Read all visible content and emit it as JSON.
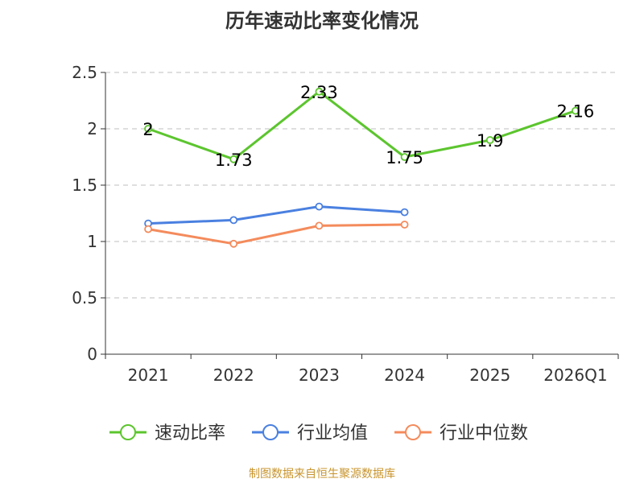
{
  "chart_data": {
    "type": "line",
    "title": "历年速动比率变化情况",
    "categories": [
      "2021",
      "2022",
      "2023",
      "2024",
      "2025",
      "2026Q1"
    ],
    "ylim": [
      0,
      2.5
    ],
    "yticks": [
      0,
      0.5,
      1,
      1.5,
      2,
      2.5
    ],
    "ytick_labels": [
      "0",
      "0.5",
      "1",
      "1.5",
      "2",
      "2.5"
    ],
    "grid": true,
    "legend_position": "bottom",
    "series": [
      {
        "name": "速动比率",
        "color": "#5cc52e",
        "values": [
          2,
          1.73,
          2.33,
          1.75,
          1.9,
          2.16
        ],
        "labels": [
          "2",
          "1.73",
          "2.33",
          "1.75",
          "1.9",
          "2.16"
        ],
        "show_labels": true
      },
      {
        "name": "行业均值",
        "color": "#4a80e0",
        "values": [
          1.16,
          1.19,
          1.31,
          1.26,
          null,
          null
        ],
        "show_labels": false
      },
      {
        "name": "行业中位数",
        "color": "#f48b5c",
        "values": [
          1.11,
          0.98,
          1.14,
          1.15,
          null,
          null
        ],
        "show_labels": false
      }
    ]
  },
  "source": {
    "text": "制图数据来自恒生聚源数据库",
    "color": "#c8952e"
  }
}
